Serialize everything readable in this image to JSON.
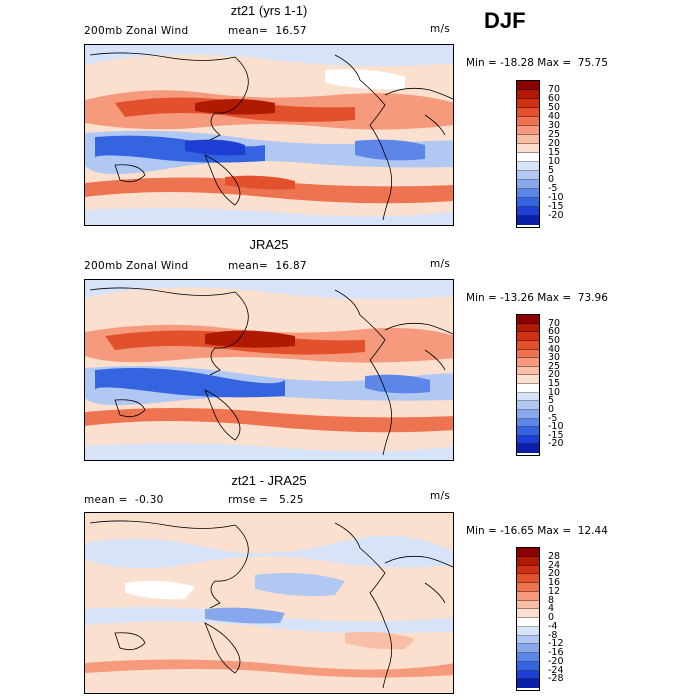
{
  "season": "DJF",
  "panels": [
    {
      "title": "zt21 (yrs 1-1)",
      "left_label": "200mb Zonal Wind",
      "mid_label": "mean=  16.57",
      "units": "m/s",
      "minmax": "Min = -18.28 Max =  75.75",
      "colorbar": {
        "ticks": [
          "70",
          "60",
          "50",
          "40",
          "30",
          "25",
          "20",
          "15",
          "10",
          "5",
          "0",
          "-5",
          "-10",
          "-15",
          "-20"
        ],
        "colors": [
          "#8b0000",
          "#b01a00",
          "#cf3010",
          "#e2502c",
          "#ee7350",
          "#f59a7c",
          "#f9bfa6",
          "#fbe0d0",
          "#ffffff",
          "#d7e3f8",
          "#b1c8f3",
          "#88a8ee",
          "#5c86e8",
          "#3564e0",
          "#1d3fd4",
          "#0b1fa8"
        ]
      }
    },
    {
      "title": "JRA25",
      "left_label": "200mb Zonal Wind",
      "mid_label": "mean=  16.87",
      "units": "m/s",
      "minmax": "Min = -13.26 Max =  73.96",
      "colorbar": {
        "ticks": [
          "70",
          "60",
          "50",
          "40",
          "30",
          "25",
          "20",
          "15",
          "10",
          "5",
          "0",
          "-5",
          "-10",
          "-15",
          "-20"
        ],
        "colors": [
          "#8b0000",
          "#b01a00",
          "#cf3010",
          "#e2502c",
          "#ee7350",
          "#f59a7c",
          "#f9bfa6",
          "#fbe0d0",
          "#ffffff",
          "#d7e3f8",
          "#b1c8f3",
          "#88a8ee",
          "#5c86e8",
          "#3564e0",
          "#1d3fd4",
          "#0b1fa8"
        ]
      }
    },
    {
      "title": "zt21 - JRA25",
      "left_label": "mean =  -0.30",
      "mid_label": "rmse =   5.25",
      "units": "m/s",
      "minmax": "Min = -16.65 Max =  12.44",
      "colorbar": {
        "ticks": [
          "28",
          "24",
          "20",
          "16",
          "12",
          "8",
          "4",
          "0",
          "-4",
          "-8",
          "-12",
          "-16",
          "-20",
          "-24",
          "-28"
        ],
        "colors": [
          "#8b0000",
          "#b01a00",
          "#cf3010",
          "#e2502c",
          "#ee7350",
          "#f59a7c",
          "#f9bfa6",
          "#fbe0d0",
          "#ffffff",
          "#d7e3f8",
          "#b1c8f3",
          "#88a8ee",
          "#5c86e8",
          "#3564e0",
          "#1d3fd4",
          "#0b1fa8"
        ]
      }
    }
  ]
}
